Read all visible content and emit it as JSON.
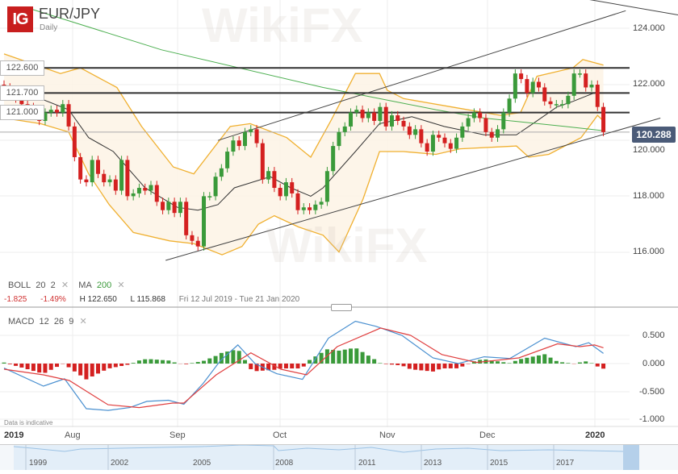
{
  "header": {
    "logo": "IG",
    "symbol": "EUR/JPY",
    "timeframe": "Daily"
  },
  "levels": [
    "122.600",
    "121.700",
    "121.000"
  ],
  "price_axis": [
    "124.000",
    "122.000",
    "120.000",
    "118.000",
    "116.000"
  ],
  "current_price": "120.288",
  "indicators": {
    "boll": {
      "label": "BOLL",
      "p1": "20",
      "p2": "2"
    },
    "ma": {
      "label": "MA",
      "p1": "200"
    },
    "macd": {
      "label": "MACD",
      "p1": "12",
      "p2": "26",
      "p3": "9"
    },
    "remove": "✕"
  },
  "stats": {
    "change": "-1.825",
    "change_pct": "-1.49%",
    "high": "H 122.650",
    "low": "L 115.868",
    "range": "Fri 12 Jul 2019 - Tue 21 Jan 2020"
  },
  "macd_axis": [
    "0.500",
    "0.000",
    "-0.500",
    "-1.000"
  ],
  "disclaimer": "Data is indicative",
  "time_axis": [
    {
      "label": "2019",
      "year": true
    },
    {
      "label": "Aug"
    },
    {
      "label": "Sep"
    },
    {
      "label": "Oct"
    },
    {
      "label": "Nov"
    },
    {
      "label": "Dec"
    },
    {
      "label": "2020",
      "year": true
    }
  ],
  "navigator_years": [
    "1999",
    "2002",
    "2005",
    "2008",
    "2011",
    "2013",
    "2015",
    "2017"
  ],
  "watermark": "WikiFX",
  "colors": {
    "up": "#3a9a3a",
    "down": "#d42020",
    "boll": "#f0b030",
    "boll_fill": "#fdf3e3",
    "ma20": "#333333",
    "ma200": "#4caf50",
    "macd": "#4a90d0",
    "signal": "#e04040",
    "level": "#333333",
    "brand": "#c81e1e"
  },
  "chart_data": [
    {
      "type": "candlestick",
      "title": "EUR/JPY",
      "ylim": [
        115.3,
        125.1
      ],
      "closes": [
        121.9,
        121.7,
        121.5,
        121.3,
        121.2,
        121.0,
        120.7,
        121.0,
        121.1,
        121.0,
        121.3,
        120.5,
        119.4,
        118.6,
        118.5,
        119.3,
        118.8,
        118.5,
        118.6,
        118.2,
        119.3,
        118.0,
        118.1,
        118.3,
        118.2,
        118.4,
        117.8,
        117.5,
        117.8,
        117.4,
        117.8,
        116.6,
        116.4,
        116.2,
        118.0,
        118.0,
        118.7,
        119.0,
        119.6,
        120.0,
        119.8,
        120.3,
        120.4,
        119.9,
        118.6,
        118.9,
        118.3,
        118.0,
        118.5,
        118.1,
        117.5,
        117.6,
        117.5,
        117.7,
        117.8,
        118.9,
        119.8,
        120.3,
        120.5,
        121.0,
        121.1,
        120.8,
        121.0,
        120.7,
        121.2,
        120.5,
        120.9,
        120.7,
        120.5,
        120.2,
        120.4,
        119.9,
        119.6,
        120.2,
        120.1,
        119.9,
        119.7,
        120.1,
        120.5,
        120.8,
        121.0,
        120.8,
        120.3,
        120.1,
        120.4,
        121.0,
        121.5,
        122.4,
        122.2,
        121.7,
        122.1,
        121.9,
        121.4,
        121.3,
        121.3,
        121.3,
        121.6,
        122.4,
        122.4,
        121.9,
        122.0,
        121.2,
        120.3
      ],
      "boll_upper": [
        [
          0,
          123.1
        ],
        [
          9.6,
          122.4
        ],
        [
          13,
          122.6
        ],
        [
          19.2,
          121.9
        ],
        [
          23.4,
          120.5
        ],
        [
          28.8,
          119.05
        ],
        [
          32.3,
          118.8
        ],
        [
          38.5,
          120.5
        ],
        [
          41.9,
          120.6
        ],
        [
          48.1,
          120.1
        ],
        [
          52.2,
          119.4
        ],
        [
          55.6,
          120.7
        ],
        [
          59.8,
          122.4
        ],
        [
          63.9,
          122.4
        ],
        [
          65.2,
          121.8
        ],
        [
          68,
          121.5
        ],
        [
          76.2,
          121.2
        ],
        [
          84.5,
          120.9
        ],
        [
          87.9,
          121.0
        ],
        [
          90.7,
          122.3
        ],
        [
          96.8,
          122.6
        ],
        [
          98.5,
          122.9
        ],
        [
          102,
          122.7
        ]
      ],
      "boll_lower": [
        [
          0,
          120.8
        ],
        [
          6.2,
          120.6
        ],
        [
          11,
          120.3
        ],
        [
          14.4,
          118.8
        ],
        [
          17.9,
          117.7
        ],
        [
          22,
          116.7
        ],
        [
          28.2,
          116.4
        ],
        [
          32.3,
          116.3
        ],
        [
          37.1,
          115.9
        ],
        [
          40.5,
          116.2
        ],
        [
          43.3,
          117.0
        ],
        [
          46,
          117.3
        ],
        [
          50.1,
          116.9
        ],
        [
          54.3,
          116.6
        ],
        [
          57,
          116.0
        ],
        [
          61.1,
          117.9
        ],
        [
          63.9,
          119.6
        ],
        [
          68,
          119.6
        ],
        [
          73.5,
          119.5
        ],
        [
          77.6,
          119.7
        ],
        [
          87.2,
          119.8
        ],
        [
          89.3,
          119.4
        ],
        [
          92.7,
          119.5
        ],
        [
          98.2,
          120.1
        ],
        [
          101,
          120.9
        ],
        [
          102,
          120.7
        ]
      ],
      "boll_mid": [
        [
          0,
          121.9
        ],
        [
          6.2,
          121.5
        ],
        [
          11,
          121.1
        ],
        [
          14.4,
          120.1
        ],
        [
          18.6,
          119.6
        ],
        [
          24,
          118.3
        ],
        [
          29.5,
          117.6
        ],
        [
          33,
          117.5
        ],
        [
          36.4,
          117.7
        ],
        [
          39.2,
          118.3
        ],
        [
          45.3,
          118.7
        ],
        [
          48.8,
          118.3
        ],
        [
          52.2,
          118.0
        ],
        [
          54.3,
          118.3
        ],
        [
          59.8,
          119.6
        ],
        [
          63.9,
          120.6
        ],
        [
          69.4,
          120.85
        ],
        [
          74.9,
          120.5
        ],
        [
          81.7,
          120.2
        ],
        [
          87.2,
          120.2
        ],
        [
          90,
          120.6
        ],
        [
          94.1,
          121.2
        ],
        [
          96.8,
          121.4
        ],
        [
          101,
          121.75
        ]
      ],
      "ma200": [
        [
          4.8,
          124.7
        ],
        [
          26.8,
          123.25
        ],
        [
          54.3,
          121.9
        ],
        [
          73.5,
          121.1
        ],
        [
          81.7,
          120.8
        ],
        [
          95.5,
          120.5
        ],
        [
          102,
          120.35
        ]
      ],
      "horizontal_levels": [
        122.6,
        121.7,
        121.0
      ],
      "trendlines": [
        [
          [
            36.4,
            120.0
          ],
          [
            105.8,
            124.65
          ]
        ],
        [
          [
            27.5,
            115.7
          ],
          [
            111.7,
            120.8
          ]
        ],
        [
          [
            99.6,
            125.05
          ],
          [
            114.7,
            124.5
          ]
        ]
      ]
    },
    {
      "type": "line",
      "title": "MACD 12 26 9",
      "ylim": [
        -1.05,
        0.95
      ],
      "macd": [
        [
          0,
          -0.08
        ],
        [
          6.7,
          -0.4
        ],
        [
          10.3,
          -0.27
        ],
        [
          14,
          -0.8
        ],
        [
          17.7,
          -0.83
        ],
        [
          21.4,
          -0.78
        ],
        [
          24.3,
          -0.67
        ],
        [
          28,
          -0.65
        ],
        [
          30.6,
          -0.72
        ],
        [
          33.9,
          -0.35
        ],
        [
          36.8,
          0.05
        ],
        [
          39.8,
          0.33
        ],
        [
          42.7,
          0.0
        ],
        [
          46.4,
          -0.18
        ],
        [
          50.8,
          -0.28
        ],
        [
          55.2,
          0.45
        ],
        [
          59.8,
          0.75
        ],
        [
          63.3,
          0.66
        ],
        [
          67.7,
          0.5
        ],
        [
          73,
          0.1
        ],
        [
          77.3,
          0.0
        ],
        [
          81.7,
          0.12
        ],
        [
          86.1,
          0.09
        ],
        [
          92,
          0.45
        ],
        [
          97.3,
          0.3
        ],
        [
          99.5,
          0.37
        ],
        [
          102,
          0.18
        ]
      ],
      "signal": [
        [
          0,
          -0.1
        ],
        [
          6.7,
          -0.2
        ],
        [
          11.1,
          -0.3
        ],
        [
          17.7,
          -0.73
        ],
        [
          23,
          -0.78
        ],
        [
          28.7,
          -0.7
        ],
        [
          30.6,
          -0.7
        ],
        [
          36.1,
          -0.2
        ],
        [
          42,
          0.19
        ],
        [
          47.1,
          -0.1
        ],
        [
          51.5,
          -0.2
        ],
        [
          56.7,
          0.3
        ],
        [
          64.1,
          0.63
        ],
        [
          69.2,
          0.5
        ],
        [
          74.5,
          0.16
        ],
        [
          80.4,
          0.02
        ],
        [
          87.6,
          0.1
        ],
        [
          94.2,
          0.35
        ],
        [
          98,
          0.3
        ],
        [
          100.5,
          0.33
        ],
        [
          102,
          0.28
        ]
      ]
    }
  ]
}
